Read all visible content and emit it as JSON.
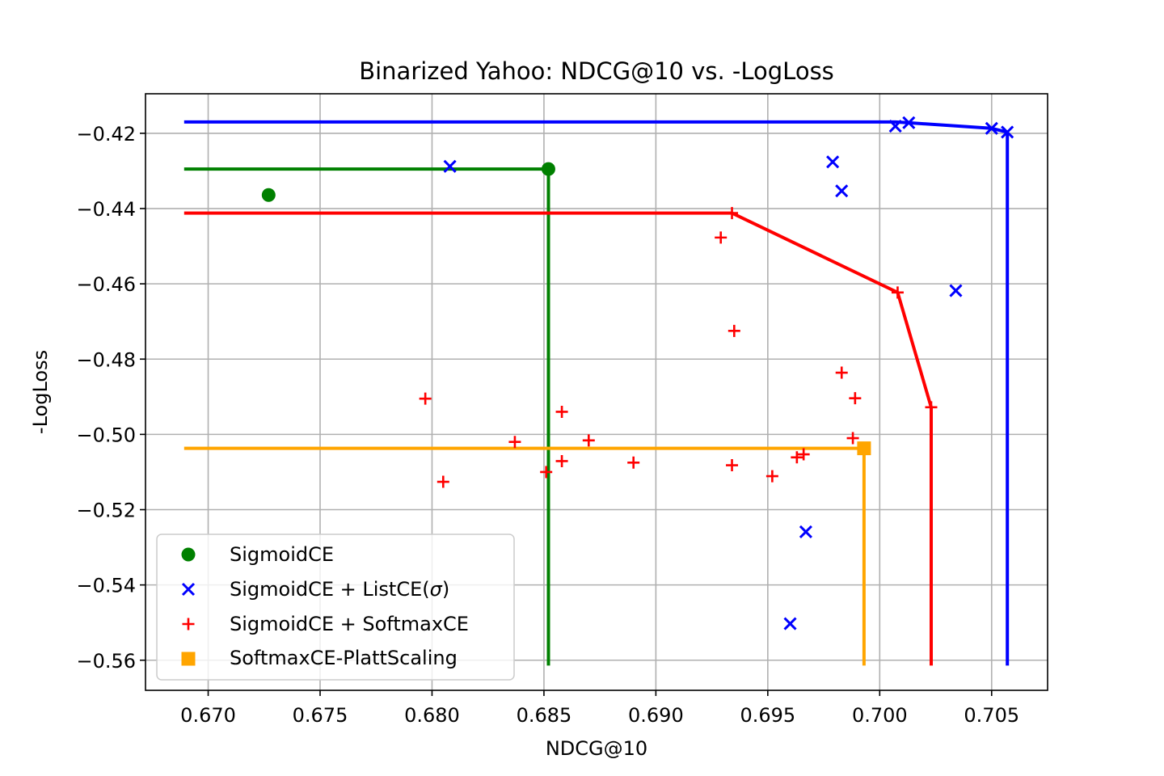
{
  "chart_data": {
    "type": "scatter",
    "title": "Binarized Yahoo: NDCG@10 vs. -LogLoss",
    "xlabel": "NDCG@10",
    "ylabel": "-LogLoss",
    "xlim": [
      0.6672,
      0.7075
    ],
    "ylim": [
      -0.568,
      -0.4095
    ],
    "xticks": [
      0.67,
      0.675,
      0.68,
      0.685,
      0.69,
      0.695,
      0.7,
      0.705
    ],
    "xtick_labels": [
      "0.670",
      "0.675",
      "0.680",
      "0.685",
      "0.690",
      "0.695",
      "0.700",
      "0.705"
    ],
    "yticks": [
      -0.42,
      -0.44,
      -0.46,
      -0.48,
      -0.5,
      -0.52,
      -0.54,
      -0.56
    ],
    "ytick_labels": [
      "−0.42",
      "−0.44",
      "−0.46",
      "−0.48",
      "−0.50",
      "−0.52",
      "−0.54",
      "−0.56"
    ],
    "grid": true,
    "legend_position": "lower-left",
    "series": [
      {
        "name": "SigmoidCE",
        "marker": "circle",
        "color": "#008000",
        "points": [
          [
            0.6727,
            -0.4364
          ],
          [
            0.6852,
            -0.4295
          ]
        ]
      },
      {
        "name": "SigmoidCE + ListCE(σ)",
        "legend_prefix": "SigmoidCE + ListCE(",
        "legend_sigma": "σ",
        "legend_suffix": ")",
        "marker": "x",
        "color": "#0000ff",
        "points": [
          [
            0.6808,
            -0.4288
          ],
          [
            0.6979,
            -0.4276
          ],
          [
            0.6983,
            -0.4353
          ],
          [
            0.7007,
            -0.4181
          ],
          [
            0.7013,
            -0.4172
          ],
          [
            0.705,
            -0.4187
          ],
          [
            0.7057,
            -0.4197
          ],
          [
            0.7034,
            -0.4618
          ],
          [
            0.6967,
            -0.5259
          ],
          [
            0.696,
            -0.5503
          ]
        ]
      },
      {
        "name": "SigmoidCE + SoftmaxCE",
        "marker": "plus",
        "color": "#ff0000",
        "points": [
          [
            0.6934,
            -0.4412
          ],
          [
            0.6929,
            -0.4477
          ],
          [
            0.7008,
            -0.4623
          ],
          [
            0.6935,
            -0.4725
          ],
          [
            0.7023,
            -0.4928
          ],
          [
            0.6983,
            -0.4836
          ],
          [
            0.6989,
            -0.4904
          ],
          [
            0.6988,
            -0.501
          ],
          [
            0.6797,
            -0.4905
          ],
          [
            0.6858,
            -0.494
          ],
          [
            0.6837,
            -0.502
          ],
          [
            0.687,
            -0.5016
          ],
          [
            0.6851,
            -0.51
          ],
          [
            0.6858,
            -0.5071
          ],
          [
            0.689,
            -0.5075
          ],
          [
            0.6805,
            -0.5126
          ],
          [
            0.6934,
            -0.5082
          ],
          [
            0.6952,
            -0.5111
          ],
          [
            0.6963,
            -0.5061
          ],
          [
            0.6966,
            -0.5053
          ]
        ]
      },
      {
        "name": "SoftmaxCE-PlattScaling",
        "marker": "square",
        "color": "#ffa500",
        "points": [
          [
            0.6993,
            -0.5037
          ]
        ]
      }
    ],
    "frontier_lines": [
      {
        "series": "SigmoidCE + ListCE(σ)",
        "color": "#0000ff",
        "points": [
          [
            0.669,
            -0.417
          ],
          [
            0.7007,
            -0.417
          ],
          [
            0.7013,
            -0.4172
          ],
          [
            0.705,
            -0.4187
          ],
          [
            0.7057,
            -0.4197
          ],
          [
            0.7057,
            -0.561
          ]
        ]
      },
      {
        "series": "SigmoidCE",
        "color": "#008000",
        "points": [
          [
            0.669,
            -0.4295
          ],
          [
            0.6852,
            -0.4295
          ],
          [
            0.6852,
            -0.561
          ]
        ]
      },
      {
        "series": "SigmoidCE + SoftmaxCE",
        "color": "#ff0000",
        "points": [
          [
            0.669,
            -0.4412
          ],
          [
            0.6934,
            -0.4412
          ],
          [
            0.7008,
            -0.4623
          ],
          [
            0.7023,
            -0.4928
          ],
          [
            0.7023,
            -0.561
          ]
        ]
      },
      {
        "series": "SoftmaxCE-PlattScaling",
        "color": "#ffa500",
        "points": [
          [
            0.669,
            -0.5037
          ],
          [
            0.6993,
            -0.5037
          ],
          [
            0.6993,
            -0.561
          ]
        ]
      }
    ]
  }
}
